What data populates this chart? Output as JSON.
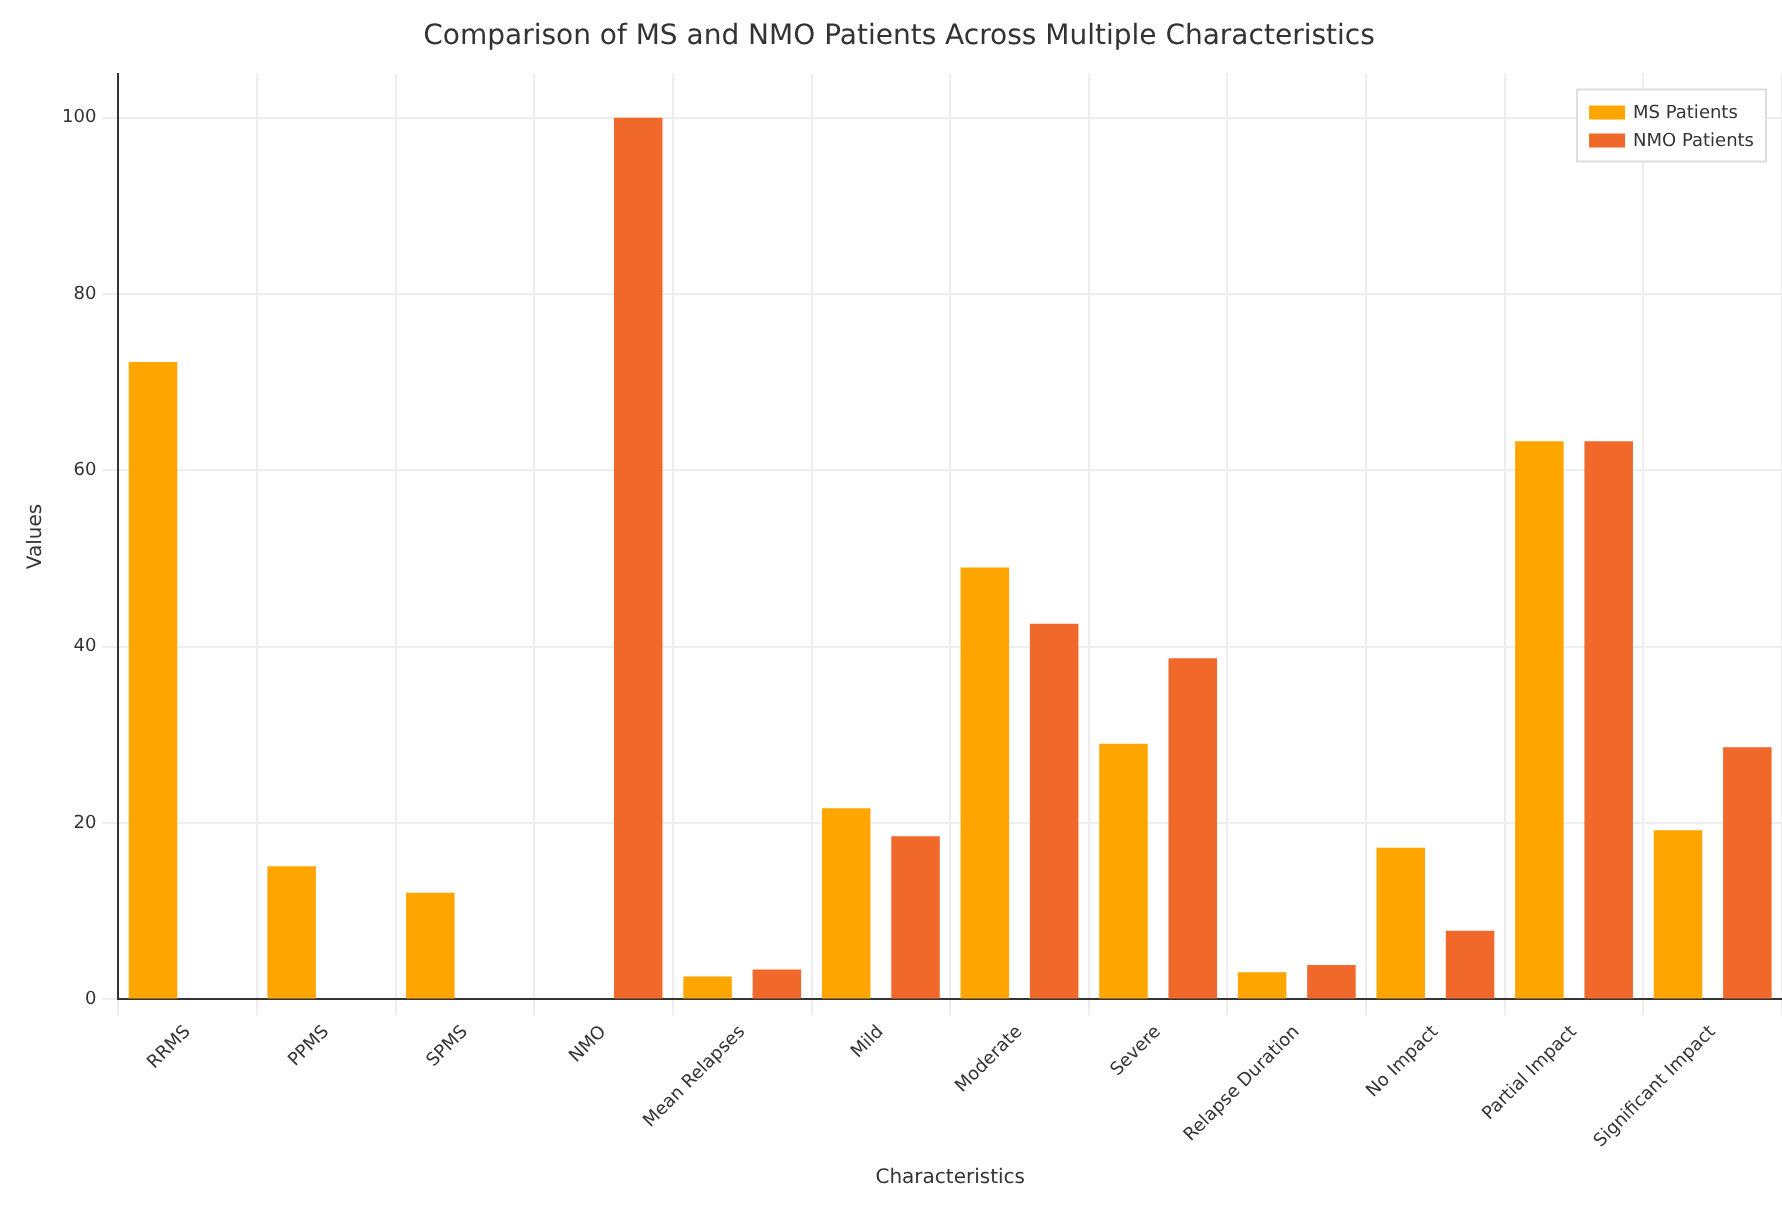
{
  "chart_data": {
    "type": "bar",
    "title": "Comparison of MS and NMO Patients Across Multiple Characteristics",
    "xlabel": "Characteristics",
    "ylabel": "Values",
    "categories": [
      "RRMS",
      "PPMS",
      "SPMS",
      "NMO",
      "Mean Relapses",
      "Mild",
      "Moderate",
      "Severe",
      "Relapse Duration",
      "No Impact",
      "Partial Impact",
      "Significant Impact"
    ],
    "series": [
      {
        "name": "MS Patients",
        "color": "#ffa500",
        "values": [
          72.3,
          15.1,
          12.1,
          0,
          2.6,
          21.7,
          49,
          29,
          3.1,
          17.2,
          63.3,
          19.2
        ]
      },
      {
        "name": "NMO Patients",
        "color": "#f0692a",
        "values": [
          0,
          0,
          0,
          100,
          3.4,
          18.5,
          42.6,
          38.7,
          3.9,
          7.8,
          63.3,
          28.6
        ]
      }
    ],
    "ylim": [
      0,
      105
    ],
    "yticks": [
      0,
      20,
      40,
      60,
      80,
      100
    ],
    "grid": true,
    "legend": "top right"
  }
}
